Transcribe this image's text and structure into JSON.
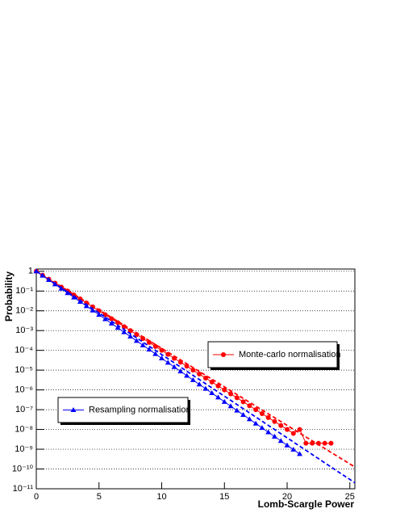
{
  "chart_data": {
    "type": "scatter",
    "x_label": "Lomb-Scargle Power",
    "y_label": "Probability",
    "log_y": true,
    "grid": true,
    "xlim": [
      0,
      25.4
    ],
    "ylim": [
      1e-11,
      1.3
    ],
    "xticks": [
      0,
      5,
      10,
      15,
      20,
      25
    ],
    "yticks": [
      {
        "value": 1,
        "label": "1"
      },
      {
        "value": 0.1,
        "label": "10⁻¹"
      },
      {
        "value": 0.01,
        "label": "10⁻²"
      },
      {
        "value": 0.001,
        "label": "10⁻³"
      },
      {
        "value": 0.0001,
        "label": "10⁻⁴"
      },
      {
        "value": 1e-05,
        "label": "10⁻⁵"
      },
      {
        "value": 1e-06,
        "label": "10⁻⁶"
      },
      {
        "value": 1e-07,
        "label": "10⁻⁷"
      },
      {
        "value": 1e-08,
        "label": "10⁻⁸"
      },
      {
        "value": 1e-09,
        "label": "10⁻⁹"
      },
      {
        "value": 1e-10,
        "label": "10⁻¹⁰"
      },
      {
        "value": 1e-11,
        "label": "10⁻¹¹"
      }
    ],
    "series": [
      {
        "name": "Monte-carlo normalisation",
        "color": "#ff0000",
        "marker": "circle",
        "x": [
          0,
          0.5,
          1,
          1.5,
          2,
          2.5,
          3,
          3.5,
          4,
          4.5,
          5,
          5.5,
          6,
          6.5,
          7,
          7.5,
          8,
          8.5,
          9,
          9.5,
          10,
          10.5,
          11,
          11.5,
          12,
          12.5,
          13,
          13.5,
          14,
          14.5,
          15,
          15.5,
          16,
          16.5,
          17,
          17.5,
          18,
          18.5,
          19,
          19.5,
          20,
          20.5,
          21,
          21.5,
          22,
          22.5,
          23,
          23.5
        ],
        "values": [
          1,
          0.631,
          0.398,
          0.251,
          0.158,
          0.1,
          0.0631,
          0.0398,
          0.0251,
          0.0158,
          0.01,
          0.00631,
          0.00398,
          0.00251,
          0.00158,
          0.001,
          0.000631,
          0.000398,
          0.000251,
          0.000158,
          0.0001,
          6.31e-05,
          3.98e-05,
          2.51e-05,
          1.58e-05,
          1e-05,
          6.31e-06,
          3.98e-06,
          2.51e-06,
          1.58e-06,
          1e-06,
          6.31e-07,
          3.98e-07,
          2.51e-07,
          1.58e-07,
          1e-07,
          6.31e-08,
          3.98e-08,
          2.51e-08,
          1.58e-08,
          1e-08,
          6.31e-09,
          1e-08,
          2e-09,
          2e-09,
          2e-09,
          2e-09,
          2e-09
        ],
        "fit_x": [
          0,
          25.4
        ],
        "fit_values": [
          1,
          1.26e-10
        ]
      },
      {
        "name": "Resampling normalisation",
        "color": "#0000ff",
        "marker": "triangle",
        "x": [
          0,
          0.5,
          1,
          1.5,
          2,
          2.5,
          3,
          3.5,
          4,
          4.5,
          5,
          5.5,
          6,
          6.5,
          7,
          7.5,
          8,
          8.5,
          9,
          9.5,
          10,
          10.5,
          11,
          11.5,
          12,
          12.5,
          13,
          13.5,
          14,
          14.5,
          15,
          15.5,
          16,
          16.5,
          17,
          17.5,
          18,
          18.5,
          19,
          19.5,
          20,
          20.5,
          21
        ],
        "values": [
          1,
          0.603,
          0.363,
          0.219,
          0.132,
          0.0794,
          0.0479,
          0.0288,
          0.0174,
          0.0105,
          0.00631,
          0.0038,
          0.00229,
          0.00138,
          0.000832,
          0.000501,
          0.000302,
          0.000182,
          0.00011,
          6.61e-05,
          3.98e-05,
          2.4e-05,
          1.45e-05,
          8.71e-06,
          5.25e-06,
          3.16e-06,
          1.91e-06,
          1.15e-06,
          6.92e-07,
          4.17e-07,
          2.51e-07,
          1.51e-07,
          9.12e-08,
          5.5e-08,
          3.31e-08,
          2e-08,
          1.2e-08,
          7.24e-09,
          4.37e-09,
          2.63e-09,
          1.58e-09,
          9.55e-10,
          5.75e-10
        ],
        "fit_x": [
          0,
          25.4
        ],
        "fit_values": [
          1,
          2e-11
        ]
      }
    ]
  }
}
